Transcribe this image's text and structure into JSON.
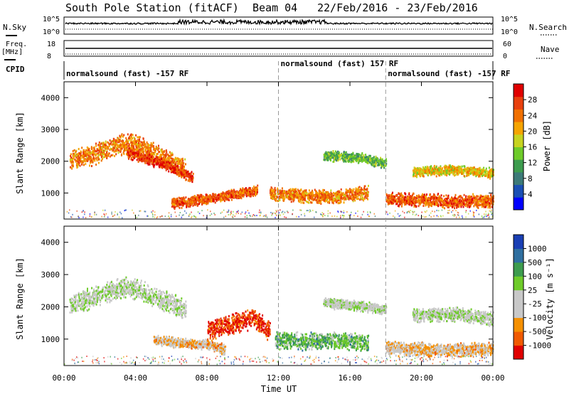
{
  "header": {
    "station": "South Pole Station (fitACF)",
    "beam": "Beam 04",
    "date_range": "22/Feb/2016 - 23/Feb/2016"
  },
  "strips": {
    "nsky_label": "N.Sky",
    "nsky_ticks": [
      "10^5",
      "10^0"
    ],
    "nsearch_label": "N.Search",
    "nsearch_ticks": [
      "10^5",
      "10^0"
    ],
    "freq_label": "Freq.",
    "freq_unit": "[MHz]",
    "freq_ticks": [
      "18",
      "8"
    ],
    "nave_label": "Nave",
    "nave_ticks": [
      "60",
      "0"
    ],
    "cpid_label": "CPID"
  },
  "modes": [
    {
      "text": "normalsound (fast) -157 RF",
      "start_h": 0
    },
    {
      "text": "normalsound (fast) 157 RF",
      "start_h": 12
    },
    {
      "text": "normalsound (fast) -157 RF",
      "start_h": 18
    }
  ],
  "x_axis": {
    "label": "Time UT",
    "ticks": [
      "00:00",
      "04:00",
      "08:00",
      "12:00",
      "16:00",
      "20:00",
      "00:00"
    ],
    "tick_hours": [
      0,
      4,
      8,
      12,
      16,
      20,
      24
    ]
  },
  "colors": {
    "power": [
      "#0000ff",
      "#1a4fb4",
      "#3c7a78",
      "#3d9c4e",
      "#6ecb2a",
      "#c6d320",
      "#f5a400",
      "#f07000",
      "#e8400e",
      "#e00000"
    ],
    "velocity": [
      "#e00000",
      "#f05a00",
      "#f59000",
      "#c8c8c8",
      "#c8c8c8",
      "#6ecb2a",
      "#3d9c4e",
      "#2f6fa0",
      "#1a3fb4"
    ]
  },
  "chart_data": [
    {
      "type": "heatmap",
      "panel": "power",
      "xlabel": "Time UT",
      "ylabel": "Slant Range [km]",
      "xlim": [
        0,
        24
      ],
      "ylim": [
        180,
        4500
      ],
      "yticks": [
        1000,
        2000,
        3000,
        4000
      ],
      "colorbar": {
        "label": "Power [dB]",
        "ticks": [
          "28",
          "24",
          "20",
          "16",
          "12",
          "8",
          "4"
        ],
        "range": [
          0,
          30
        ]
      },
      "regions": [
        {
          "t0": 0.3,
          "t1": 6.8,
          "range_center": [
            [
              0.3,
              2100
            ],
            [
              1.5,
              2200
            ],
            [
              3.0,
              2550
            ],
            [
              4.0,
              2550
            ],
            [
              5.0,
              2300
            ],
            [
              6.0,
              2000
            ],
            [
              6.8,
              1750
            ]
          ],
          "range_halfwidth": 300,
          "value": 22
        },
        {
          "t0": 3.5,
          "t1": 7.2,
          "range_center": [
            [
              3.5,
              2300
            ],
            [
              4.5,
              2100
            ],
            [
              5.5,
              1950
            ],
            [
              6.5,
              1700
            ],
            [
              7.2,
              1500
            ]
          ],
          "range_halfwidth": 150,
          "value": 26
        },
        {
          "t0": 6.0,
          "t1": 10.8,
          "range_center": [
            [
              6.0,
              700
            ],
            [
              7.5,
              800
            ],
            [
              9.0,
              950
            ],
            [
              10.8,
              1100
            ]
          ],
          "range_halfwidth": 150,
          "value": 24
        },
        {
          "t0": 11.5,
          "t1": 17.0,
          "range_center": [
            [
              11.5,
              1000
            ],
            [
              13.0,
              950
            ],
            [
              15.0,
              900
            ],
            [
              17.0,
              1050
            ]
          ],
          "range_halfwidth": 200,
          "value": 22
        },
        {
          "t0": 14.5,
          "t1": 18.0,
          "range_center": [
            [
              14.5,
              2200
            ],
            [
              16.5,
              2150
            ],
            [
              18.0,
              1950
            ]
          ],
          "range_halfwidth": 150,
          "value": 12
        },
        {
          "t0": 18.0,
          "t1": 24.0,
          "range_center": [
            [
              18.0,
              850
            ],
            [
              20.0,
              800
            ],
            [
              22.0,
              750
            ],
            [
              24.0,
              800
            ]
          ],
          "range_halfwidth": 200,
          "value": 24
        },
        {
          "t0": 19.5,
          "t1": 24.0,
          "range_center": [
            [
              19.5,
              1700
            ],
            [
              22.0,
              1750
            ],
            [
              24.0,
              1650
            ]
          ],
          "range_halfwidth": 150,
          "value": 18
        }
      ]
    },
    {
      "type": "heatmap",
      "panel": "velocity",
      "xlabel": "Time UT",
      "ylabel": "Slant Range [km]",
      "xlim": [
        0,
        24
      ],
      "ylim": [
        180,
        4500
      ],
      "yticks": [
        1000,
        2000,
        3000,
        4000
      ],
      "colorbar": {
        "label": "Velocity [m s⁻¹]",
        "ticks": [
          "1000",
          "500",
          "100",
          "25",
          "-25",
          "-100",
          "-500",
          "-1000"
        ],
        "range": [
          -1000,
          1000
        ]
      },
      "regions": [
        {
          "t0": 0.3,
          "t1": 6.8,
          "range_center": [
            [
              0.3,
              2100
            ],
            [
              1.5,
              2300
            ],
            [
              3.0,
              2600
            ],
            [
              4.0,
              2600
            ],
            [
              5.0,
              2350
            ],
            [
              6.0,
              2150
            ],
            [
              6.8,
              1900
            ]
          ],
          "range_halfwidth": 300,
          "value": 0
        },
        {
          "t0": 5.0,
          "t1": 9.0,
          "range_center": [
            [
              5.0,
              1000
            ],
            [
              6.5,
              900
            ],
            [
              8.0,
              850
            ],
            [
              9.0,
              700
            ]
          ],
          "range_halfwidth": 150,
          "value": -300
        },
        {
          "t0": 8.0,
          "t1": 11.5,
          "range_center": [
            [
              8.0,
              1300
            ],
            [
              9.5,
              1500
            ],
            [
              10.5,
              1700
            ],
            [
              11.5,
              1300
            ]
          ],
          "range_halfwidth": 300,
          "value": -800
        },
        {
          "t0": 11.8,
          "t1": 17.0,
          "range_center": [
            [
              11.8,
              1000
            ],
            [
              13.5,
              950
            ],
            [
              15.0,
              1000
            ],
            [
              17.0,
              900
            ]
          ],
          "range_halfwidth": 250,
          "value": 300
        },
        {
          "t0": 14.5,
          "t1": 18.0,
          "range_center": [
            [
              14.5,
              2150
            ],
            [
              16.5,
              2050
            ],
            [
              18.0,
              1950
            ]
          ],
          "range_halfwidth": 150,
          "value": 0
        },
        {
          "t0": 18.0,
          "t1": 24.0,
          "range_center": [
            [
              18.0,
              750
            ],
            [
              20.0,
              700
            ],
            [
              22.0,
              700
            ],
            [
              24.0,
              720
            ]
          ],
          "range_halfwidth": 200,
          "value": -300
        },
        {
          "t0": 19.5,
          "t1": 24.0,
          "range_center": [
            [
              19.5,
              1750
            ],
            [
              22.0,
              1800
            ],
            [
              24.0,
              1650
            ]
          ],
          "range_halfwidth": 200,
          "value": 0
        }
      ]
    }
  ]
}
